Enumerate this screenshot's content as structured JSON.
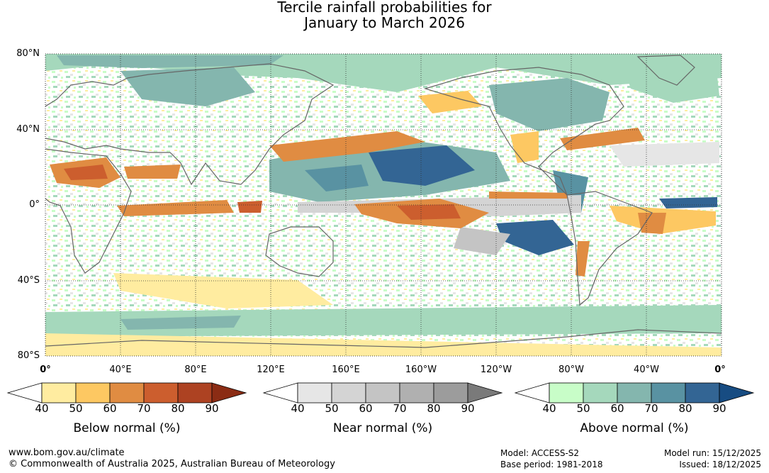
{
  "title": {
    "line1": "Tercile rainfall probabilities for",
    "line2": "January to March 2026"
  },
  "lat_labels": [
    "80°N",
    "40°N",
    "0°",
    "40°S",
    "80°S"
  ],
  "lon_labels": [
    "0°",
    "40°E",
    "80°E",
    "120°E",
    "160°E",
    "160°W",
    "120°W",
    "80°W",
    "40°W",
    "0°"
  ],
  "legends": [
    {
      "name": "below",
      "caption": "Below normal (%)",
      "ticks": [
        "40",
        "50",
        "60",
        "70",
        "80",
        "90"
      ],
      "colors": [
        "#ffffff",
        "#ffeca0",
        "#fdc862",
        "#e08c42",
        "#cc5e2e",
        "#ad4222",
        "#8b2c14"
      ]
    },
    {
      "name": "near",
      "caption": "Near normal (%)",
      "ticks": [
        "40",
        "50",
        "60",
        "70",
        "80",
        "90"
      ],
      "colors": [
        "#ffffff",
        "#e6e6e6",
        "#d4d4d4",
        "#c4c4c4",
        "#b0b0b0",
        "#9c9c9c",
        "#7a7a7a"
      ]
    },
    {
      "name": "above",
      "caption": "Above normal (%)",
      "ticks": [
        "40",
        "50",
        "60",
        "70",
        "80",
        "90"
      ],
      "colors": [
        "#ffffff",
        "#c8fdc8",
        "#a5d8bc",
        "#84b6ae",
        "#5992a2",
        "#336594",
        "#174c82"
      ]
    }
  ],
  "footer": {
    "website": "www.bom.gov.au/climate",
    "copyright": "© Commonwealth of Australia 2025, Australian Bureau of Meteorology",
    "model": "Model: ACCESS-S2",
    "base_period": "Base period: 1981-2018",
    "model_run": "Model run: 15/12/2025",
    "issued": "Issued: 18/12/2025"
  }
}
